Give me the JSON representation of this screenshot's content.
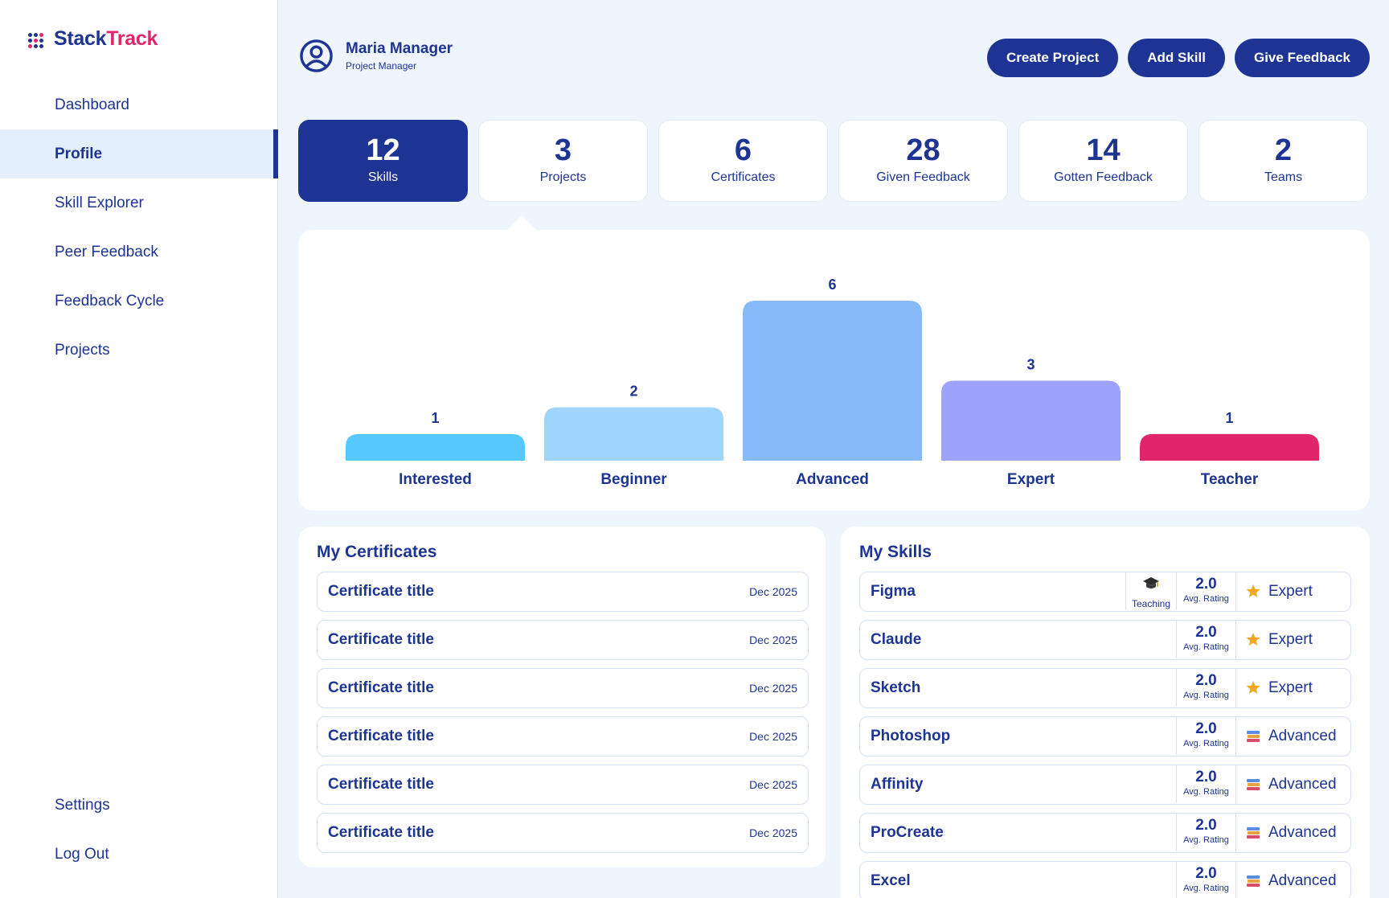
{
  "app": {
    "name_part1": "Stack",
    "name_part2": "Track"
  },
  "colors": {
    "primary": "#1d3494",
    "accent": "#e0256a",
    "background": "#eef5fd"
  },
  "sidebar": {
    "items": [
      {
        "label": "Dashboard"
      },
      {
        "label": "Profile",
        "active": true
      },
      {
        "label": "Skill Explorer"
      },
      {
        "label": "Peer Feedback"
      },
      {
        "label": "Feedback Cycle"
      },
      {
        "label": "Projects"
      }
    ],
    "bottom": [
      {
        "label": "Settings"
      },
      {
        "label": "Log Out"
      }
    ]
  },
  "user": {
    "name": "Maria Manager",
    "role": "Project Manager",
    "icon": "user-circle-icon"
  },
  "actions": [
    {
      "label": "Create Project"
    },
    {
      "label": "Add Skill"
    },
    {
      "label": "Give Feedback"
    }
  ],
  "stats": [
    {
      "value": "12",
      "label": "Skills",
      "active": true
    },
    {
      "value": "3",
      "label": "Projects"
    },
    {
      "value": "6",
      "label": "Certificates"
    },
    {
      "value": "28",
      "label": "Given Feedback"
    },
    {
      "value": "14",
      "label": "Gotten Feedback"
    },
    {
      "value": "2",
      "label": "Teams"
    }
  ],
  "chart_data": {
    "type": "bar",
    "categories": [
      "Interested",
      "Beginner",
      "Advanced",
      "Expert",
      "Teacher"
    ],
    "values": [
      1,
      2,
      6,
      3,
      1
    ],
    "colors": [
      "#56c8fb",
      "#9fd4fb",
      "#86baf9",
      "#9da2fb",
      "#e0256a"
    ],
    "data_labels": true,
    "ylim": [
      0,
      6
    ],
    "grid": false
  },
  "certificates": {
    "title": "My Certificates",
    "items": [
      {
        "title": "Certificate title",
        "date": "Dec 2025"
      },
      {
        "title": "Certificate title",
        "date": "Dec 2025"
      },
      {
        "title": "Certificate title",
        "date": "Dec 2025"
      },
      {
        "title": "Certificate title",
        "date": "Dec 2025"
      },
      {
        "title": "Certificate title",
        "date": "Dec 2025"
      },
      {
        "title": "Certificate title",
        "date": "Dec 2025"
      }
    ]
  },
  "skills": {
    "title": "My Skills",
    "rating_label": "Avg. Rating",
    "teaching_label": "Teaching",
    "items": [
      {
        "name": "Figma",
        "rating": "2.0",
        "level": "Expert",
        "level_icon": "star-icon",
        "teaching": true
      },
      {
        "name": "Claude",
        "rating": "2.0",
        "level": "Expert",
        "level_icon": "star-icon"
      },
      {
        "name": "Sketch",
        "rating": "2.0",
        "level": "Expert",
        "level_icon": "star-icon"
      },
      {
        "name": "Photoshop",
        "rating": "2.0",
        "level": "Advanced",
        "level_icon": "books-icon"
      },
      {
        "name": "Affinity",
        "rating": "2.0",
        "level": "Advanced",
        "level_icon": "books-icon"
      },
      {
        "name": "ProCreate",
        "rating": "2.0",
        "level": "Advanced",
        "level_icon": "books-icon"
      },
      {
        "name": "Excel",
        "rating": "2.0",
        "level": "Advanced",
        "level_icon": "books-icon"
      }
    ]
  }
}
